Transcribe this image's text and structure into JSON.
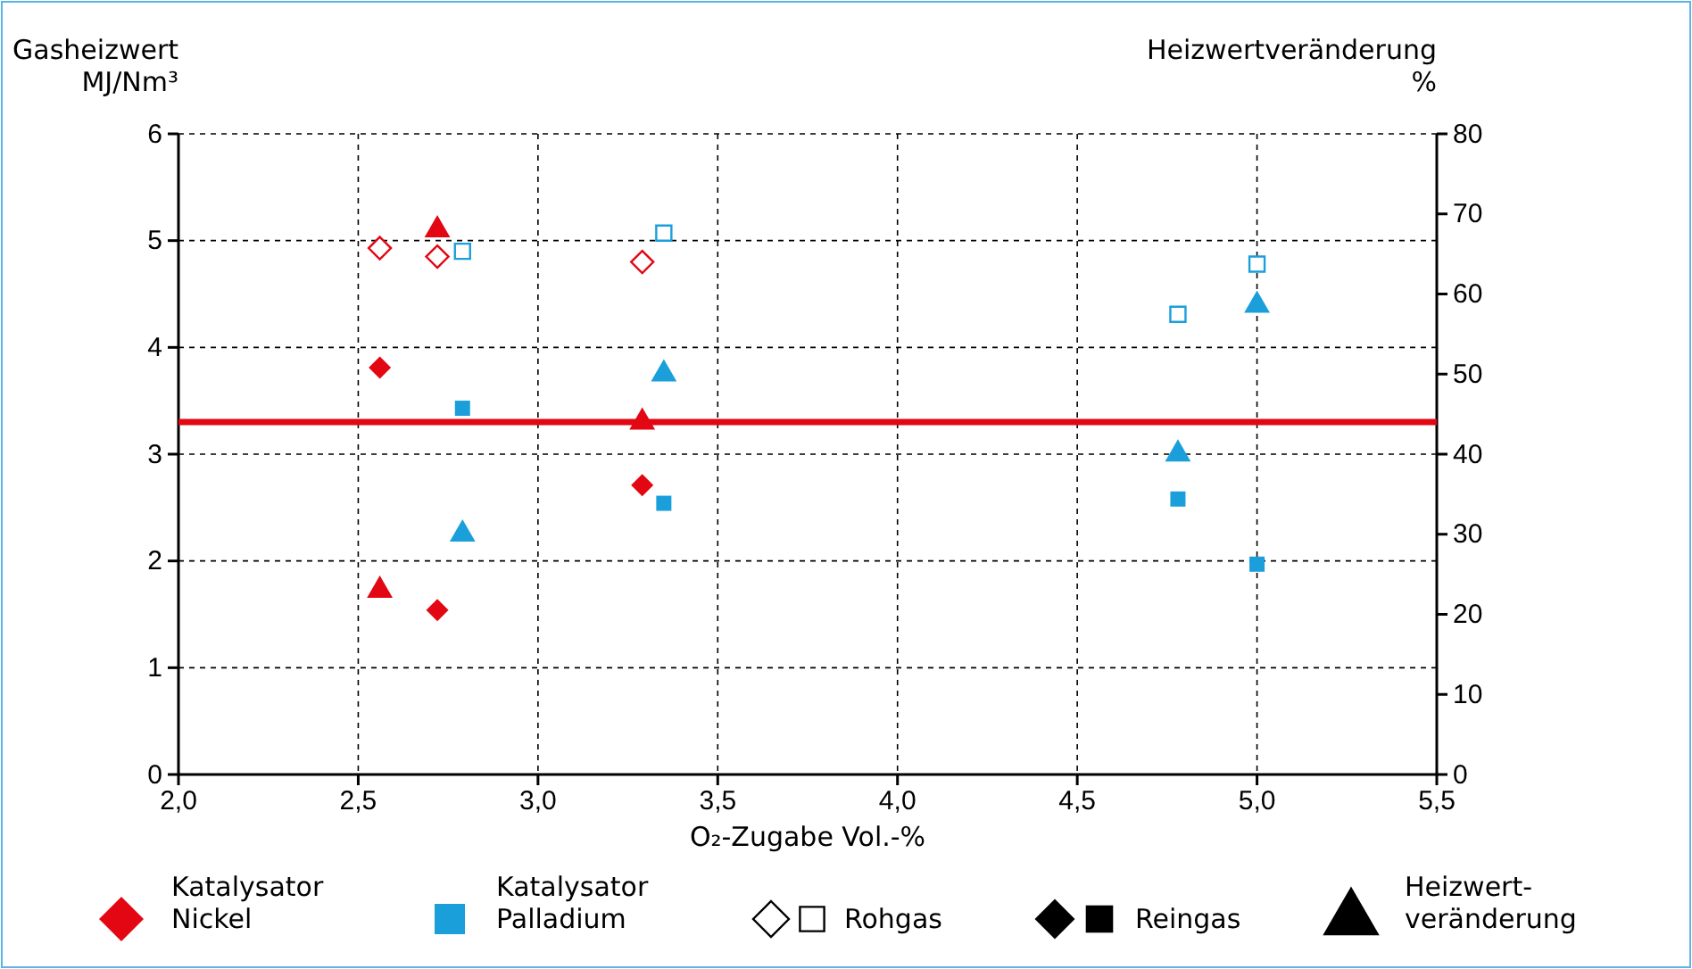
{
  "chart_data": {
    "type": "scatter",
    "xlabel": "O₂-Zugabe Vol.-%",
    "ylabel": "Gasheizwert MJ/Nm³",
    "y2label": "Heizwertveränderung %",
    "xlim": [
      2.0,
      5.5
    ],
    "xticks": [
      {
        "value": 2.0,
        "label": "2,0"
      },
      {
        "value": 2.5,
        "label": "2,5"
      },
      {
        "value": 3.0,
        "label": "3,0"
      },
      {
        "value": 3.5,
        "label": "3,5"
      },
      {
        "value": 4.0,
        "label": "4,0"
      },
      {
        "value": 4.5,
        "label": "4,5"
      },
      {
        "value": 5.0,
        "label": "5,0"
      },
      {
        "value": 5.5,
        "label": "5,5"
      }
    ],
    "ylim": [
      0,
      6
    ],
    "yticks": [
      0,
      1,
      2,
      3,
      4,
      5,
      6
    ],
    "y2lim": [
      0,
      80
    ],
    "y2ticks": [
      0,
      10,
      20,
      30,
      40,
      50,
      60,
      70,
      80
    ],
    "grid": true,
    "series": [
      {
        "color": "#e30613",
        "marker": "diamond-open",
        "x": [
          2.56,
          2.72,
          3.29
        ],
        "values": [
          4.93,
          4.85,
          4.8
        ]
      },
      {
        "color": "#1a9fdb",
        "marker": "square-open",
        "x": [
          2.79,
          3.35,
          4.78,
          5.0
        ],
        "values": [
          4.9,
          5.07,
          4.31,
          4.78
        ]
      },
      {
        "color": "#e30613",
        "marker": "diamond",
        "x": [
          2.56,
          2.72,
          3.29
        ],
        "values": [
          3.81,
          1.54,
          2.71
        ]
      },
      {
        "color": "#1a9fdb",
        "marker": "square",
        "x": [
          2.79,
          3.35,
          4.78,
          5.0
        ],
        "values": [
          3.43,
          2.54,
          2.58,
          1.97
        ]
      },
      {
        "color": "#e30613",
        "marker": "triangle",
        "axis": "y2",
        "x": [
          2.56,
          2.72,
          3.29
        ],
        "values": [
          23,
          68,
          44
        ]
      },
      {
        "color": "#1a9fdb",
        "marker": "triangle",
        "axis": "y2",
        "x": [
          2.79,
          3.35,
          4.78,
          5.0
        ],
        "values": [
          30,
          50,
          40,
          58.6
        ]
      }
    ],
    "ref_lines": [
      {
        "axis": "y",
        "value": 3.3,
        "color": "#e30613"
      }
    ],
    "annotations": [
      "Katalysator Nickel",
      "Katalysator Palladium",
      "Rohgas",
      "Reingas",
      "Heizwert-veränderung"
    ]
  }
}
